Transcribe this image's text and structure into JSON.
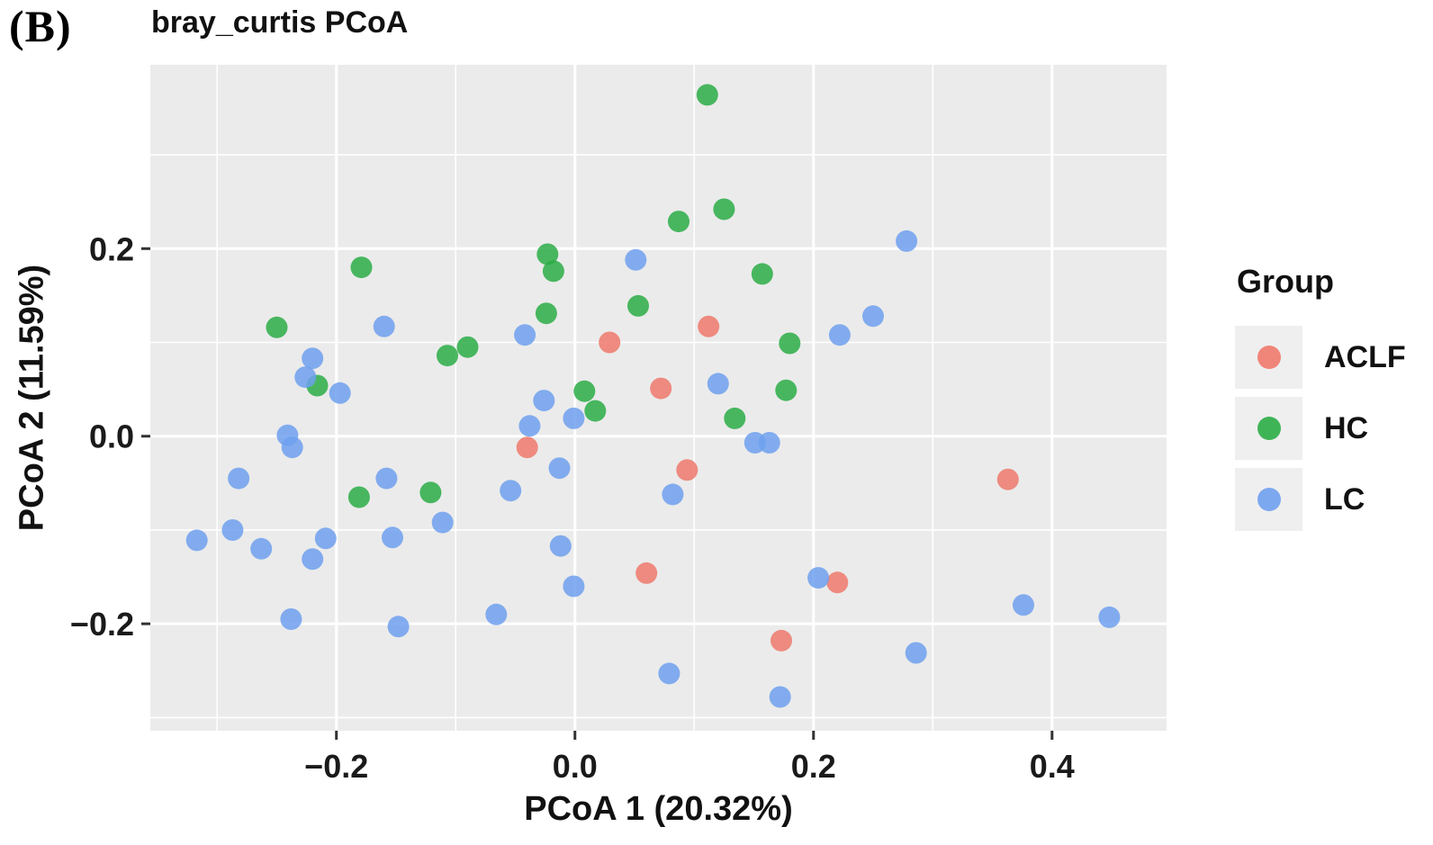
{
  "figure": {
    "panel_label": "(B)"
  },
  "chart_data": {
    "type": "scatter",
    "title": "bray_curtis PCoA",
    "xlabel": "PCoA 1 (20.32%)",
    "ylabel": "PCoA 2 (11.59%)",
    "xlim": [
      -0.356,
      0.496
    ],
    "ylim": [
      -0.314,
      0.396
    ],
    "grid": true,
    "panel_background": "#EBEBEB",
    "grid_color": "#FFFFFF",
    "tick_color": "#333333",
    "tick_label_color": "#1a1a1a",
    "point_radius_px": 12,
    "point_opacity": 0.85,
    "x_ticks": {
      "values": [
        -0.2,
        0.0,
        0.2,
        0.4
      ],
      "labels": [
        "−0.2",
        "0.0",
        "0.2",
        "0.4"
      ]
    },
    "y_ticks": {
      "values": [
        0.2,
        0.0,
        -0.2
      ],
      "labels": [
        "0.2",
        "0.0",
        "−0.2"
      ]
    },
    "minor_x_ticks": [
      -0.3,
      -0.1,
      0.1,
      0.3
    ],
    "minor_y_ticks": [
      0.3,
      0.1,
      -0.1,
      -0.3
    ],
    "legend": {
      "title": "Group",
      "position": "right",
      "key_background": "#EFEFEF"
    },
    "series": [
      {
        "name": "ACLF",
        "color": "#EF796C",
        "points": [
          [
            0.112,
            0.117
          ],
          [
            0.029,
            0.1
          ],
          [
            0.072,
            0.051
          ],
          [
            -0.04,
            -0.012
          ],
          [
            0.094,
            -0.036
          ],
          [
            0.363,
            -0.046
          ],
          [
            0.06,
            -0.146
          ],
          [
            0.22,
            -0.156
          ],
          [
            0.173,
            -0.218
          ]
        ]
      },
      {
        "name": "HC",
        "color": "#2BAD46",
        "points": [
          [
            0.111,
            0.364
          ],
          [
            0.087,
            0.229
          ],
          [
            0.125,
            0.242
          ],
          [
            -0.023,
            0.194
          ],
          [
            -0.018,
            0.176
          ],
          [
            0.157,
            0.173
          ],
          [
            -0.179,
            0.18
          ],
          [
            -0.024,
            0.131
          ],
          [
            0.053,
            0.139
          ],
          [
            -0.25,
            0.116
          ],
          [
            0.18,
            0.099
          ],
          [
            -0.107,
            0.086
          ],
          [
            -0.09,
            0.095
          ],
          [
            -0.216,
            0.054
          ],
          [
            0.177,
            0.049
          ],
          [
            0.008,
            0.048
          ],
          [
            0.017,
            0.027
          ],
          [
            0.134,
            0.019
          ],
          [
            -0.181,
            -0.065
          ],
          [
            -0.121,
            -0.06
          ]
        ]
      },
      {
        "name": "LC",
        "color": "#6FA0EE",
        "points": [
          [
            0.278,
            0.208
          ],
          [
            0.051,
            0.188
          ],
          [
            0.25,
            0.128
          ],
          [
            -0.16,
            0.117
          ],
          [
            0.222,
            0.108
          ],
          [
            -0.042,
            0.108
          ],
          [
            -0.22,
            0.083
          ],
          [
            -0.226,
            0.063
          ],
          [
            -0.197,
            0.046
          ],
          [
            0.12,
            0.056
          ],
          [
            -0.026,
            0.038
          ],
          [
            -0.001,
            0.019
          ],
          [
            -0.038,
            0.011
          ],
          [
            0.151,
            -0.007
          ],
          [
            0.163,
            -0.007
          ],
          [
            -0.241,
            0.001
          ],
          [
            -0.237,
            -0.012
          ],
          [
            -0.013,
            -0.034
          ],
          [
            -0.282,
            -0.045
          ],
          [
            -0.158,
            -0.045
          ],
          [
            -0.054,
            -0.058
          ],
          [
            0.082,
            -0.062
          ],
          [
            -0.111,
            -0.092
          ],
          [
            -0.287,
            -0.1
          ],
          [
            -0.263,
            -0.12
          ],
          [
            -0.209,
            -0.109
          ],
          [
            -0.22,
            -0.131
          ],
          [
            -0.153,
            -0.108
          ],
          [
            -0.317,
            -0.111
          ],
          [
            -0.012,
            -0.117
          ],
          [
            -0.001,
            -0.16
          ],
          [
            0.204,
            -0.151
          ],
          [
            0.376,
            -0.18
          ],
          [
            -0.238,
            -0.195
          ],
          [
            -0.148,
            -0.203
          ],
          [
            -0.066,
            -0.19
          ],
          [
            0.448,
            -0.193
          ],
          [
            0.286,
            -0.231
          ],
          [
            0.079,
            -0.253
          ],
          [
            0.172,
            -0.278
          ]
        ]
      }
    ]
  }
}
